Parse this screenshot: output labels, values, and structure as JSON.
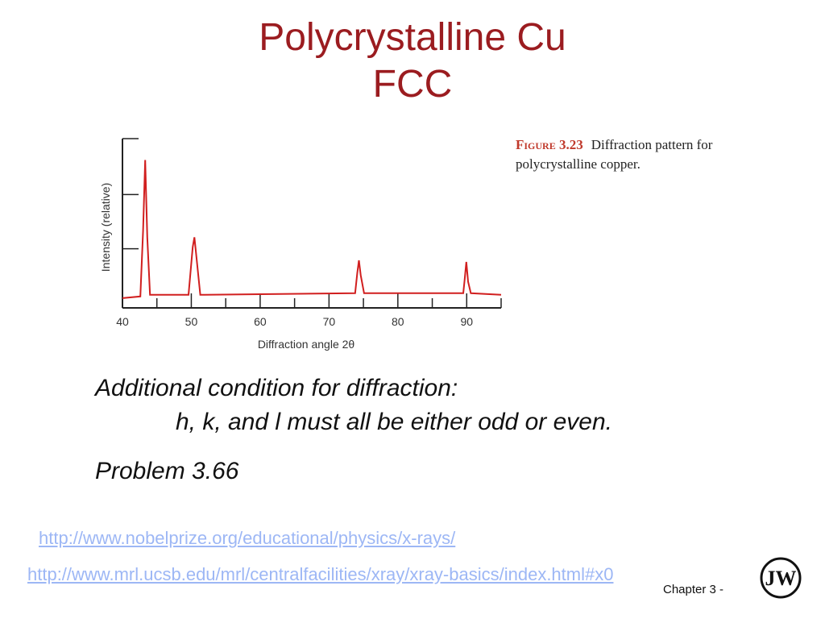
{
  "slide": {
    "title_line1": "Polycrystalline Cu",
    "title_line2": "FCC",
    "figure_label": "Figure 3.23",
    "figure_caption": "Diffraction pattern for polycrystalline copper.",
    "condition_heading": "Additional condition for diffraction:",
    "condition_text": "h, k, and l must all be either odd or even.",
    "problem": "Problem 3.66",
    "link1": "http://www.nobelprize.org/educational/physics/x-rays/",
    "link2": "http://www.mrl.ucsb.edu/mrl/centralfacilities/xray/xray-basics/index.html#x0",
    "footer": "Chapter 3 -",
    "logo_letters": "JW",
    "colors": {
      "title": "#9b1c20",
      "trace": "#d11f1f",
      "link": "#9db7f5",
      "figure_label": "#c0392b"
    }
  },
  "chart_data": {
    "type": "line",
    "xlabel": "Diffraction angle 2θ",
    "ylabel": "Intensity (relative)",
    "xlim": [
      40,
      95
    ],
    "ylim": [
      0,
      1
    ],
    "x_ticks": [
      40,
      50,
      60,
      70,
      80,
      90
    ],
    "grid": false,
    "series": [
      {
        "x": [
          40,
          42.6,
          43.0,
          43.3,
          43.6,
          44.0,
          49.6,
          50.2,
          50.45,
          50.7,
          51.3,
          73.8,
          74.1,
          74.35,
          74.6,
          75.1,
          89.5,
          89.7,
          89.95,
          90.2,
          90.6,
          95
        ],
        "y": [
          0.03,
          0.04,
          0.44,
          0.87,
          0.4,
          0.05,
          0.05,
          0.34,
          0.4,
          0.3,
          0.05,
          0.06,
          0.18,
          0.26,
          0.17,
          0.06,
          0.06,
          0.14,
          0.25,
          0.13,
          0.06,
          0.05
        ]
      }
    ]
  }
}
